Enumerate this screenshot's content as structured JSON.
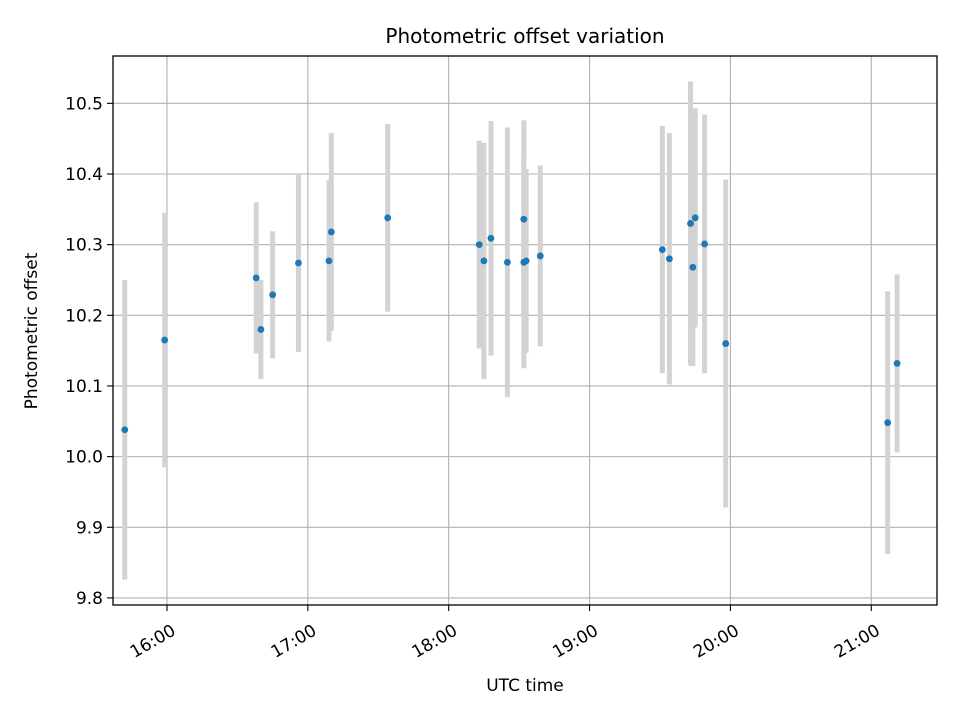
{
  "chart_data": {
    "type": "scatter",
    "title": "Photometric offset variation",
    "xlabel": "UTC time",
    "ylabel": "Photometric offset",
    "x_unit": "UTC time (HH:MM)",
    "xlim": [
      "15:37",
      "21:28"
    ],
    "ylim": [
      9.79,
      10.567
    ],
    "xticks": [
      "16:00",
      "17:00",
      "18:00",
      "19:00",
      "20:00",
      "21:00"
    ],
    "yticks": [
      "9.8",
      "9.9",
      "10.0",
      "10.1",
      "10.2",
      "10.3",
      "10.4",
      "10.5"
    ],
    "grid": true,
    "colors": {
      "point": "#1f77b4",
      "errorbar": "#d3d3d3",
      "grid": "#b0b0b0"
    },
    "points": [
      {
        "t": "15:42",
        "y": 10.038,
        "err": 0.212
      },
      {
        "t": "15:59",
        "y": 10.165,
        "err": 0.18
      },
      {
        "t": "16:38",
        "y": 10.253,
        "err": 0.107
      },
      {
        "t": "16:40",
        "y": 10.18,
        "err": 0.07
      },
      {
        "t": "16:45",
        "y": 10.229,
        "err": 0.09
      },
      {
        "t": "16:56",
        "y": 10.274,
        "err": 0.126
      },
      {
        "t": "17:09",
        "y": 10.277,
        "err": 0.114
      },
      {
        "t": "17:10",
        "y": 10.318,
        "err": 0.14
      },
      {
        "t": "17:34",
        "y": 10.338,
        "err": 0.133
      },
      {
        "t": "18:13",
        "y": 10.3,
        "err": 0.147
      },
      {
        "t": "18:15",
        "y": 10.277,
        "err": 0.167
      },
      {
        "t": "18:18",
        "y": 10.309,
        "err": 0.166
      },
      {
        "t": "18:25",
        "y": 10.275,
        "err": 0.191
      },
      {
        "t": "18:32",
        "y": 10.275,
        "err": 0.15
      },
      {
        "t": "18:32",
        "y": 10.336,
        "err": 0.14
      },
      {
        "t": "18:33",
        "y": 10.277,
        "err": 0.13
      },
      {
        "t": "18:39",
        "y": 10.284,
        "err": 0.128
      },
      {
        "t": "19:31",
        "y": 10.293,
        "err": 0.175
      },
      {
        "t": "19:34",
        "y": 10.28,
        "err": 0.178
      },
      {
        "t": "19:43",
        "y": 10.33,
        "err": 0.201
      },
      {
        "t": "19:44",
        "y": 10.268,
        "err": 0.14
      },
      {
        "t": "19:45",
        "y": 10.338,
        "err": 0.155
      },
      {
        "t": "19:49",
        "y": 10.301,
        "err": 0.183
      },
      {
        "t": "19:58",
        "y": 10.16,
        "err": 0.232
      },
      {
        "t": "21:07",
        "y": 10.048,
        "err": 0.186
      },
      {
        "t": "21:11",
        "y": 10.132,
        "err": 0.126
      }
    ]
  }
}
